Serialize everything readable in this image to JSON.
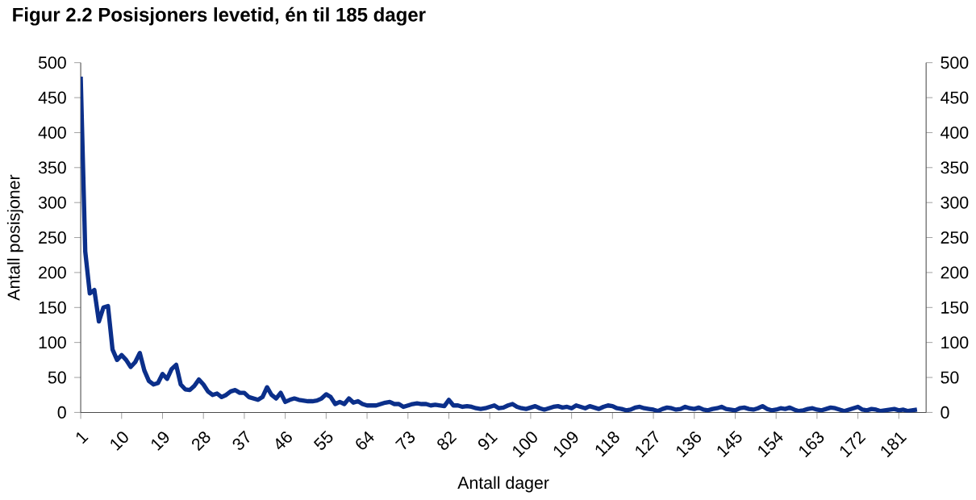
{
  "chart_data": {
    "type": "line",
    "title": "Figur 2.2 Posisjoners levetid, én til 185 dager",
    "xlabel": "Antall dager",
    "ylabel": "Antall posisjoner",
    "x": [
      1,
      2,
      3,
      4,
      5,
      6,
      7,
      8,
      9,
      10,
      11,
      12,
      13,
      14,
      15,
      16,
      17,
      18,
      19,
      20,
      21,
      22,
      23,
      24,
      25,
      26,
      27,
      28,
      29,
      30,
      31,
      32,
      33,
      34,
      35,
      36,
      37,
      38,
      39,
      40,
      41,
      42,
      43,
      44,
      45,
      46,
      47,
      48,
      49,
      50,
      51,
      52,
      53,
      54,
      55,
      56,
      57,
      58,
      59,
      60,
      61,
      62,
      63,
      64,
      65,
      66,
      67,
      68,
      69,
      70,
      71,
      72,
      73,
      74,
      75,
      76,
      77,
      78,
      79,
      80,
      81,
      82,
      83,
      84,
      85,
      86,
      87,
      88,
      89,
      90,
      91,
      92,
      93,
      94,
      95,
      96,
      97,
      98,
      99,
      100,
      101,
      102,
      103,
      104,
      105,
      106,
      107,
      108,
      109,
      110,
      111,
      112,
      113,
      114,
      115,
      116,
      117,
      118,
      119,
      120,
      121,
      122,
      123,
      124,
      125,
      126,
      127,
      128,
      129,
      130,
      131,
      132,
      133,
      134,
      135,
      136,
      137,
      138,
      139,
      140,
      141,
      142,
      143,
      144,
      145,
      146,
      147,
      148,
      149,
      150,
      151,
      152,
      153,
      154,
      155,
      156,
      157,
      158,
      159,
      160,
      161,
      162,
      163,
      164,
      165,
      166,
      167,
      168,
      169,
      170,
      171,
      172,
      173,
      174,
      175,
      176,
      177,
      178,
      179,
      180,
      181,
      182,
      183,
      184,
      185
    ],
    "series": [
      {
        "color": "#0b2f8a",
        "values": [
          480,
          230,
          170,
          175,
          130,
          150,
          152,
          90,
          75,
          82,
          75,
          65,
          72,
          85,
          60,
          45,
          40,
          42,
          55,
          48,
          62,
          68,
          40,
          33,
          32,
          38,
          47,
          40,
          30,
          25,
          27,
          22,
          25,
          30,
          32,
          28,
          28,
          22,
          20,
          18,
          22,
          36,
          25,
          20,
          28,
          15,
          18,
          20,
          18,
          17,
          16,
          16,
          17,
          20,
          26,
          22,
          12,
          15,
          12,
          20,
          14,
          16,
          12,
          10,
          10,
          10,
          12,
          14,
          15,
          12,
          12,
          8,
          10,
          12,
          13,
          12,
          12,
          10,
          11,
          10,
          9,
          18,
          10,
          10,
          8,
          9,
          8,
          6,
          5,
          6,
          8,
          10,
          6,
          7,
          10,
          12,
          8,
          6,
          5,
          7,
          9,
          6,
          4,
          6,
          8,
          9,
          7,
          8,
          6,
          10,
          8,
          6,
          9,
          7,
          5,
          8,
          10,
          9,
          6,
          5,
          3,
          4,
          7,
          8,
          6,
          5,
          4,
          2,
          5,
          7,
          6,
          4,
          5,
          8,
          6,
          5,
          7,
          4,
          3,
          5,
          6,
          8,
          5,
          4,
          3,
          6,
          7,
          5,
          4,
          6,
          9,
          5,
          3,
          4,
          6,
          5,
          7,
          4,
          2,
          3,
          5,
          6,
          4,
          3,
          5,
          7,
          6,
          4,
          2,
          4,
          6,
          8,
          4,
          3,
          5,
          4,
          2,
          3,
          4,
          5,
          3,
          4,
          2,
          3,
          4
        ]
      }
    ],
    "xlim": [
      1,
      187
    ],
    "xticks": [
      1,
      10,
      19,
      28,
      37,
      46,
      55,
      64,
      73,
      82,
      91,
      100,
      109,
      118,
      127,
      136,
      145,
      154,
      163,
      172,
      181
    ],
    "ylim": [
      0,
      500
    ],
    "yticks": [
      0,
      50,
      100,
      150,
      200,
      250,
      300,
      350,
      400,
      450,
      500
    ],
    "y2lim": [
      0,
      500
    ],
    "y2ticks": [
      0,
      50,
      100,
      150,
      200,
      250,
      300,
      350,
      400,
      450,
      500
    ],
    "grid": false,
    "marker": "none",
    "line_style": "solid"
  }
}
